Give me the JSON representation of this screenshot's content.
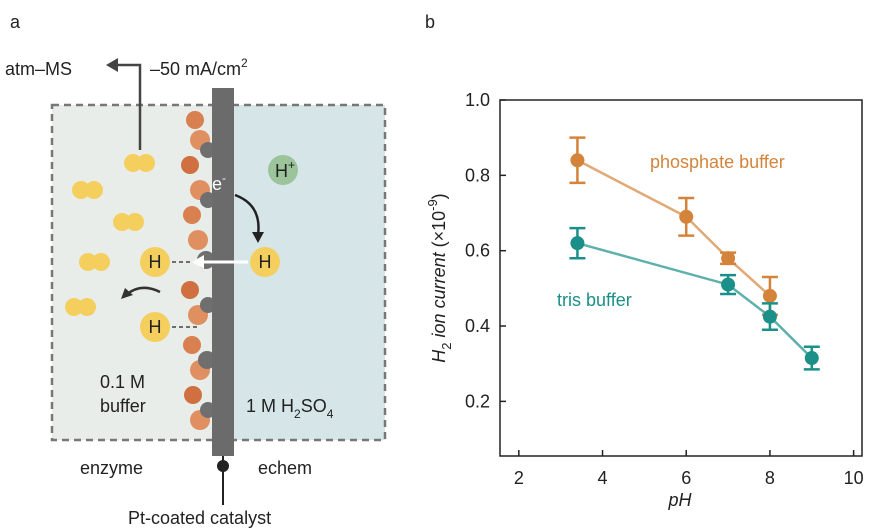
{
  "panels": [
    "a",
    "b"
  ],
  "diagram": {
    "top_left": "atm–MS",
    "current": "–50 mA/cm",
    "current_exponent": "2",
    "electron": "e",
    "electron_charge": "-",
    "proton": "H",
    "proton_charge": "+",
    "hydrogen": [
      "H",
      "H",
      "H",
      "H"
    ],
    "left_medium": [
      "0.1 M",
      "buffer"
    ],
    "right_medium": {
      "text": "1 M H",
      "sub1": "2",
      "mid": "SO",
      "sub2": "4"
    },
    "left_label": "enzyme",
    "right_label": "echem",
    "electrode": "Pt-coated catalyst"
  },
  "chart_data": {
    "type": "scatter",
    "xlabel": "pH",
    "ylabel": {
      "symbol": "H",
      "subscript": "2",
      "text": " ion current",
      "unit": " (×10",
      "exponent": "-9",
      "close": ")"
    },
    "xlim": [
      1.55,
      10.2
    ],
    "ylim": [
      0.055,
      1.0
    ],
    "xticks": [
      2,
      4,
      6,
      8,
      10
    ],
    "yticks": [
      {
        "value": 1.0,
        "label": "1.0"
      },
      0.8,
      0.6,
      0.4,
      0.2
    ],
    "series": [
      {
        "name": "phosphate buffer",
        "color": "#d4843a",
        "x": [
          3.4,
          6,
          7,
          8
        ],
        "values": [
          0.84,
          0.69,
          0.58,
          0.48
        ],
        "errors": [
          0.06,
          0.05,
          0.015,
          0.05
        ]
      },
      {
        "name": "tris buffer",
        "color": "#1a9088",
        "x": [
          3.4,
          7,
          8,
          9
        ],
        "values": [
          0.62,
          0.51,
          0.425,
          0.315
        ],
        "errors": [
          0.04,
          0.025,
          0.035,
          0.03
        ]
      }
    ]
  }
}
